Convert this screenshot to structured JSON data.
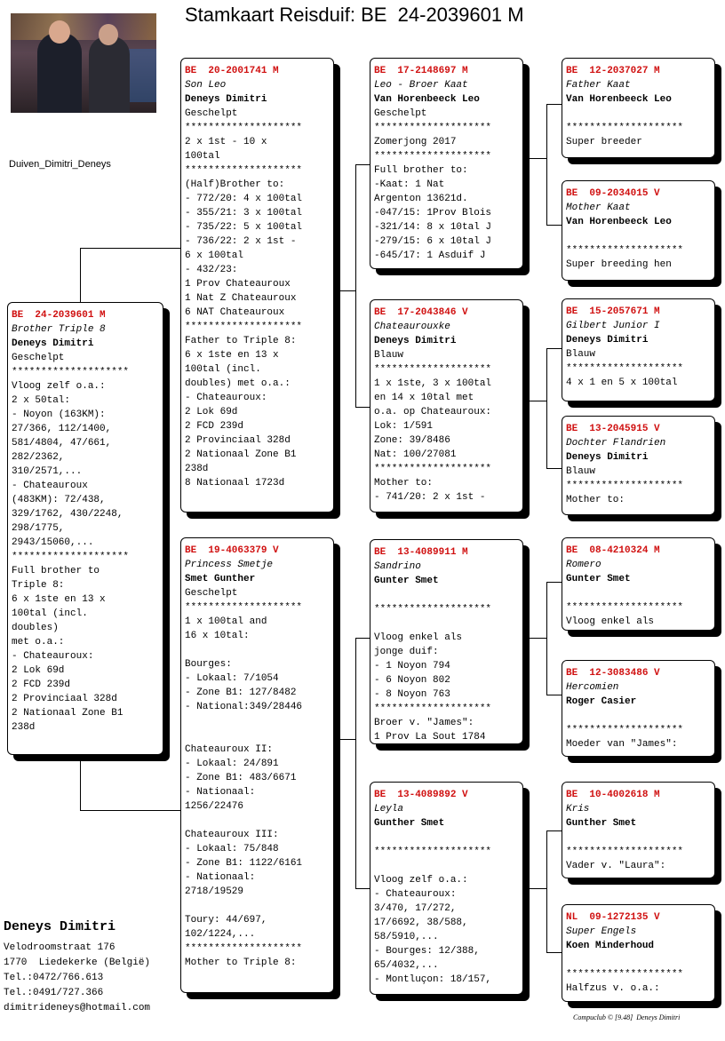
{
  "title": "Stamkaart Reisduif: BE  24-2039601 M",
  "album_label": "Duiven_Dimitri_Deneys",
  "footer": {
    "name": "Deneys Dimitri",
    "address": [
      "Velodroomstraat 176",
      "1770  Liedekerke (België)",
      "Tel.:0472/766.613",
      "Tel.:0491/727.366",
      "dimitrideneys@hotmail.com"
    ],
    "credit": "Compuclub © [9.48]  Deneys Dimitri"
  },
  "colors": {
    "ring": "#d01010"
  },
  "cards": [
    {
      "ring": "BE  24-2039601 M",
      "name": "Brother Triple 8",
      "owner": "Deneys Dimitri",
      "lines": [
        "Geschelpt",
        "********************",
        "Vloog zelf o.a.:",
        "2 x 50tal:",
        "- Noyon (163KM):",
        "27/366, 112/1400,",
        "581/4804, 47/661,",
        "282/2362,",
        "310/2571,...",
        "- Chateauroux",
        "(483KM): 72/438,",
        "329/1762, 430/2248,",
        "298/1775,",
        "2943/15060,...",
        "********************",
        "Full brother to",
        "Triple 8:",
        "6 x 1ste en 13 x",
        "100tal (incl.",
        "doubles)",
        "met o.a.:",
        "- Chateauroux:",
        "2 Lok 69d",
        "2 FCD 239d",
        "2 Provinciaal 328d",
        "2 Nationaal Zone B1",
        "238d"
      ]
    },
    {
      "ring": "BE  20-2001741 M",
      "name": "Son Leo",
      "owner": "Deneys Dimitri",
      "lines": [
        "Geschelpt",
        "********************",
        "2 x 1st - 10 x",
        "100tal",
        "********************",
        "(Half)Brother to:",
        "- 772/20: 4 x 100tal",
        "- 355/21: 3 x 100tal",
        "- 735/22: 5 x 100tal",
        "- 736/22: 2 x 1st -",
        "6 x 100tal",
        "- 432/23:",
        "1 Prov Chateauroux",
        "1 Nat Z Chateauroux",
        "6 NAT Chateauroux",
        "********************",
        "Father to Triple 8:",
        "6 x 1ste en 13 x",
        "100tal (incl.",
        "doubles) met o.a.:",
        "- Chateauroux:",
        "2 Lok 69d",
        "2 FCD 239d",
        "2 Provinciaal 328d",
        "2 Nationaal Zone B1",
        "238d",
        "8 Nationaal 1723d"
      ]
    },
    {
      "ring": "BE  19-4063379 V",
      "name": "Princess Smetje",
      "owner": "Smet Gunther",
      "lines": [
        "Geschelpt",
        "********************",
        "1 x 100tal and",
        "16 x 10tal:",
        "",
        "Bourges:",
        "- Lokaal: 7/1054",
        "- Zone B1: 127/8482",
        "- National:349/28446",
        "",
        "",
        "Chateauroux II:",
        "- Lokaal: 24/891",
        "- Zone B1: 483/6671",
        "- Nationaal:",
        "1256/22476",
        "",
        "Chateauroux III:",
        "- Lokaal: 75/848",
        "- Zone B1: 1122/6161",
        "- Nationaal:",
        "2718/19529",
        "",
        "Toury: 44/697,",
        "102/1224,...",
        "********************",
        "Mother to Triple 8:"
      ]
    },
    {
      "ring": "BE  17-2148697 M",
      "name": "Leo - Broer Kaat",
      "owner": "Van Horenbeeck Leo",
      "lines": [
        "Geschelpt",
        "********************",
        "Zomerjong 2017",
        "********************",
        "Full brother to:",
        "-Kaat: 1 Nat",
        "Argenton 13621d.",
        "-047/15: 1Prov Blois",
        "-321/14: 8 x 10tal J",
        "-279/15: 6 x 10tal J",
        "-645/17: 1 Asduif J"
      ]
    },
    {
      "ring": "BE  17-2043846 V",
      "name": "Chateaurouxke",
      "owner": "Deneys Dimitri",
      "lines": [
        "Blauw",
        "********************",
        "1 x 1ste, 3 x 100tal",
        "en 14 x 10tal met",
        "o.a. op Chateauroux:",
        "Lok: 1/591",
        "Zone: 39/8486",
        "Nat: 100/27081",
        "********************",
        "Mother to:",
        "- 741/20: 2 x 1st -"
      ]
    },
    {
      "ring": "BE  13-4089911 M",
      "name": "Sandrino",
      "owner": "Gunter Smet",
      "lines": [
        "",
        "********************",
        "",
        "Vloog enkel als",
        "jonge duif:",
        "- 1 Noyon 794",
        "- 6 Noyon 802",
        "- 8 Noyon 763",
        "********************",
        "Broer v. \"James\":",
        "1 Prov La Sout 1784"
      ]
    },
    {
      "ring": "BE  13-4089892 V",
      "name": "Leyla",
      "owner": "Gunther Smet",
      "lines": [
        "",
        "********************",
        "",
        "Vloog zelf o.a.:",
        "- Chateauroux:",
        "3/470, 17/272,",
        "17/6692, 38/588,",
        "58/5910,...",
        "- Bourges: 12/388,",
        "65/4032,...",
        "- Montluçon: 18/157,"
      ]
    },
    {
      "ring": "BE  12-2037027 M",
      "name": "Father Kaat",
      "owner": "Van Horenbeeck Leo",
      "lines": [
        "",
        "********************",
        "Super breeder"
      ]
    },
    {
      "ring": "BE  09-2034015 V",
      "name": "Mother Kaat",
      "owner": "Van Horenbeeck Leo",
      "lines": [
        "",
        "********************",
        "Super breeding hen"
      ]
    },
    {
      "ring": "BE  15-2057671 M",
      "name": "Gilbert Junior I",
      "owner": "Deneys Dimitri",
      "lines": [
        "Blauw",
        "********************",
        "4 x 1 en 5 x 100tal"
      ]
    },
    {
      "ring": "BE  13-2045915 V",
      "name": "Dochter Flandrien",
      "owner": "Deneys Dimitri",
      "lines": [
        "Blauw",
        "********************",
        "Mother to:"
      ]
    },
    {
      "ring": "BE  08-4210324 M",
      "name": "Romero",
      "owner": "Gunter Smet",
      "lines": [
        "",
        "********************",
        "Vloog enkel als"
      ]
    },
    {
      "ring": "BE  12-3083486 V",
      "name": "Hercomien",
      "owner": "Roger Casier",
      "lines": [
        "",
        "********************",
        "Moeder van \"James\":"
      ]
    },
    {
      "ring": "BE  10-4002618 M",
      "name": "Kris",
      "owner": "Gunther Smet",
      "lines": [
        "",
        "********************",
        "Vader v. \"Laura\":"
      ]
    },
    {
      "ring": "NL  09-1272135 V",
      "name": "Super Engels",
      "owner": "Koen Minderhoud",
      "lines": [
        "",
        "********************",
        "Halfzus v. o.a.:"
      ]
    }
  ]
}
